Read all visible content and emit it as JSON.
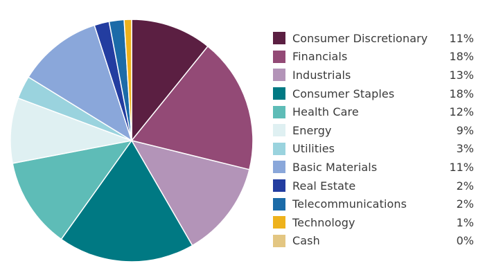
{
  "chart_data": {
    "type": "pie",
    "title": "",
    "start_angle_deg": 0,
    "direction": "clockwise",
    "legend_position": "right",
    "slices": [
      {
        "label": "Consumer Discretionary",
        "value_text": "11%",
        "value": 10.87,
        "color": "#5b1f42"
      },
      {
        "label": "Financials",
        "value_text": "18%",
        "value": 18.13,
        "color": "#934a76"
      },
      {
        "label": "Industrials",
        "value_text": "13%",
        "value": 12.87,
        "color": "#b394b8"
      },
      {
        "label": "Consumer Staples",
        "value_text": "18%",
        "value": 18.3,
        "color": "#007983"
      },
      {
        "label": "Health Care",
        "value_text": "12%",
        "value": 12.2,
        "color": "#5ebcb7"
      },
      {
        "label": "Energy",
        "value_text": "9%",
        "value": 8.75,
        "color": "#dff0f2"
      },
      {
        "label": "Utilities",
        "value_text": "3%",
        "value": 3.1,
        "color": "#9ad3de"
      },
      {
        "label": "Basic Materials",
        "value_text": "11%",
        "value": 11.3,
        "color": "#8aa7da"
      },
      {
        "label": "Real Estate",
        "value_text": "2%",
        "value": 2.0,
        "color": "#233da0"
      },
      {
        "label": "Telecommunications",
        "value_text": "2%",
        "value": 2.0,
        "color": "#1b6ba8"
      },
      {
        "label": "Technology",
        "value_text": "1%",
        "value": 1.0,
        "color": "#eeb21c"
      },
      {
        "label": "Cash",
        "value_text": "0%",
        "value": 0.0,
        "color": "#e3c682"
      }
    ]
  }
}
